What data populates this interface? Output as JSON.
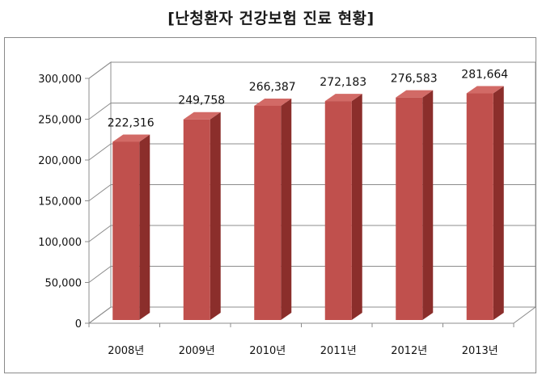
{
  "chart_data": {
    "type": "bar",
    "title": "[난청환자 건강보험 진료 현황]",
    "categories": [
      "2008년",
      "2009년",
      "2010년",
      "2011년",
      "2012년",
      "2013년"
    ],
    "values": [
      222316,
      249758,
      266387,
      272183,
      276583,
      281664
    ],
    "data_labels": [
      "222,316",
      "249,758",
      "266,387",
      "272,183",
      "276,583",
      "281,664"
    ],
    "y_ticks": [
      "0",
      "50,000",
      "100,000",
      "150,000",
      "200,000",
      "250,000",
      "300,000"
    ],
    "ylim": [
      0,
      300000
    ],
    "xlabel": "",
    "ylabel": "",
    "grid": true,
    "legend": "none",
    "bar_color": "#c0504d",
    "bar_top_color": "#d26a66",
    "bar_side_color": "#8b2e2b"
  }
}
